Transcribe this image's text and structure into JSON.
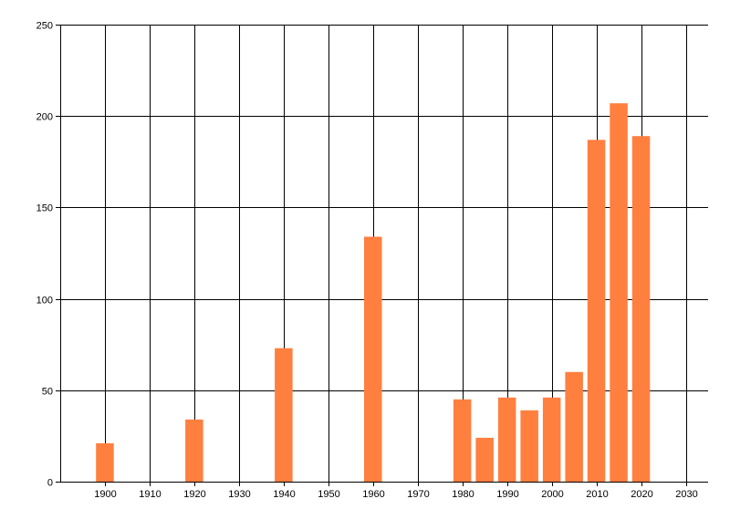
{
  "chart_data": {
    "type": "bar",
    "title": "",
    "xlabel": "",
    "ylabel": "",
    "x": [
      1900,
      1920,
      1940,
      1960,
      1980,
      1985,
      1990,
      1995,
      2000,
      2005,
      2010,
      2015,
      2020
    ],
    "values": [
      21,
      34,
      73,
      134,
      45,
      24,
      46,
      39,
      46,
      60,
      187,
      207,
      189
    ],
    "xlim": [
      1890,
      2035
    ],
    "ylim": [
      0,
      250
    ],
    "x_ticks": [
      1900,
      1910,
      1920,
      1930,
      1940,
      1950,
      1960,
      1970,
      1980,
      1990,
      2000,
      2010,
      2020,
      2030
    ],
    "y_ticks": [
      0,
      50,
      100,
      150,
      200,
      250
    ],
    "grid": true,
    "legend": "none",
    "bar_color": "#ff7f3f",
    "grid_color": "#000000"
  }
}
